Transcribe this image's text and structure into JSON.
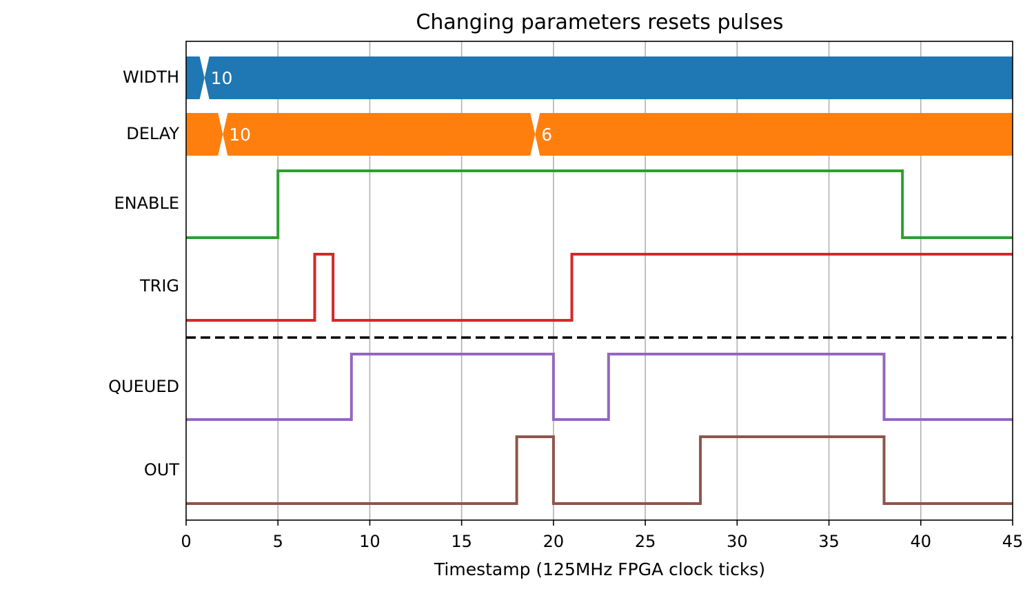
{
  "chart_data": {
    "type": "line",
    "subtype": "timing-diagram",
    "title": "Changing parameters resets pulses",
    "xlabel": "Timestamp (125MHz FPGA clock ticks)",
    "xlim": [
      0,
      45
    ],
    "xticks": [
      0,
      5,
      10,
      15,
      20,
      25,
      30,
      35,
      40,
      45
    ],
    "grid": "vertical",
    "rows": [
      {
        "label": "WIDTH",
        "kind": "bus",
        "color": "#1f77b4",
        "values": [
          {
            "start": 1,
            "text": "10"
          }
        ]
      },
      {
        "label": "DELAY",
        "kind": "bus",
        "color": "#ff7f0e",
        "values": [
          {
            "start": 2,
            "text": "10"
          },
          {
            "start": 19,
            "text": "6"
          }
        ]
      },
      {
        "label": "ENABLE",
        "kind": "digital",
        "color": "#2ca02c",
        "transitions": [
          [
            0,
            0
          ],
          [
            5,
            1
          ],
          [
            39,
            0
          ]
        ]
      },
      {
        "label": "TRIG",
        "kind": "digital",
        "color": "#d62728",
        "transitions": [
          [
            0,
            0
          ],
          [
            7,
            1
          ],
          [
            8,
            0
          ],
          [
            21,
            1
          ]
        ]
      },
      {
        "label": "QUEUED",
        "kind": "digital",
        "color": "#9467bd",
        "transitions": [
          [
            0,
            0
          ],
          [
            9,
            1
          ],
          [
            20,
            0
          ],
          [
            23,
            1
          ],
          [
            38,
            0
          ]
        ]
      },
      {
        "label": "OUT",
        "kind": "digital",
        "color": "#8c564b",
        "transitions": [
          [
            0,
            0
          ],
          [
            18,
            1
          ],
          [
            20,
            0
          ],
          [
            28,
            1
          ],
          [
            38,
            0
          ]
        ]
      }
    ],
    "separator": {
      "after_row": "TRIG",
      "style": "dashed",
      "color": "#000000"
    }
  }
}
